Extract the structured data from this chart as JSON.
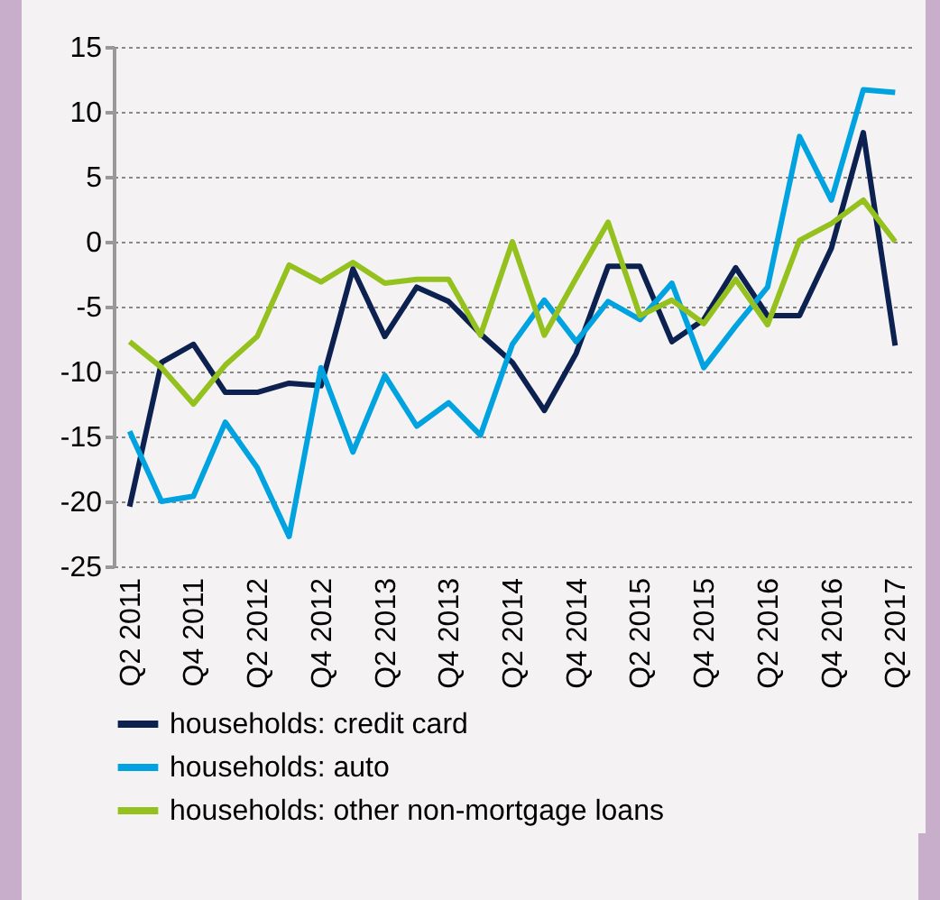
{
  "chart_data": {
    "type": "line",
    "categories": [
      "Q2 2011",
      null,
      "Q4 2011",
      null,
      "Q2 2012",
      null,
      "Q4 2012",
      null,
      "Q2 2013",
      null,
      "Q4 2013",
      null,
      "Q2 2014",
      null,
      "Q4 2014",
      null,
      "Q2 2015",
      null,
      "Q4 2015",
      null,
      "Q2 2016",
      null,
      "Q4 2016",
      null,
      "Q2 2017"
    ],
    "series": [
      {
        "name": "households: credit card",
        "color": "#0c2150",
        "values": [
          -20.4,
          -9.3,
          -7.9,
          -11.6,
          -11.6,
          -10.9,
          -11.1,
          -2.1,
          -7.3,
          -3.5,
          -4.6,
          -7.1,
          -9.3,
          -13.0,
          -8.6,
          -1.9,
          -1.9,
          -7.7,
          -6.0,
          -2.0,
          -5.7,
          -5.7,
          -0.5,
          8.4,
          -8.0
        ]
      },
      {
        "name": "households: auto",
        "color": "#00a3e0",
        "values": [
          -14.6,
          -20.0,
          -19.6,
          -13.9,
          -17.4,
          -22.7,
          -9.7,
          -16.2,
          -10.3,
          -14.2,
          -12.4,
          -14.9,
          -7.9,
          -4.5,
          -7.7,
          -4.6,
          -6.0,
          -3.2,
          -9.7,
          -6.5,
          -3.5,
          8.1,
          3.2,
          11.7,
          11.5
        ]
      },
      {
        "name": "households: other non-mortgage loans",
        "color": "#95c11f",
        "values": [
          -7.7,
          -9.7,
          -12.5,
          -9.5,
          -7.3,
          -1.8,
          -3.1,
          -1.6,
          -3.2,
          -2.9,
          -2.9,
          -7.2,
          0,
          -7.2,
          -2.8,
          1.5,
          -5.7,
          -4.5,
          -6.3,
          -2.9,
          -6.4,
          0.1,
          1.4,
          3.2,
          0
        ]
      }
    ],
    "ylim": [
      -25,
      15
    ],
    "yticks": [
      -25,
      -20,
      -15,
      -10,
      -5,
      0,
      5,
      10,
      15
    ],
    "grid": "y",
    "legend": "bottom",
    "marker": "none",
    "line_style": "solid"
  }
}
